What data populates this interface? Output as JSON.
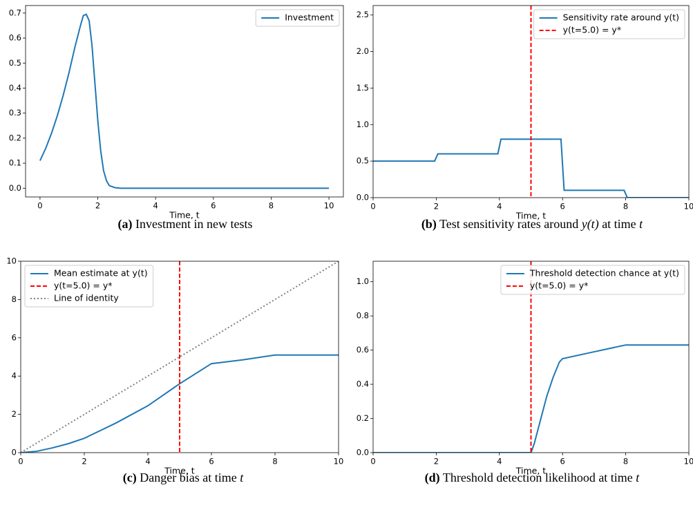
{
  "chart_data": [
    {
      "type": "line",
      "caption_label": "(a)",
      "caption": [
        "Investment in new tests"
      ],
      "xlabel": "Time, t",
      "xlim": [
        -0.5,
        10.5
      ],
      "ylim": [
        -0.035,
        0.73
      ],
      "xticks": [
        0,
        2,
        4,
        6,
        8,
        10
      ],
      "yticks": [
        {
          "value": 0,
          "label": "0.0"
        },
        0.1,
        0.2,
        0.3,
        0.4,
        0.5,
        0.6,
        0.7
      ],
      "legend": "upper right",
      "series": [
        {
          "name": "Investment",
          "color": "#1f77b4",
          "style": "solid",
          "x": [
            0,
            0.2,
            0.4,
            0.6,
            0.8,
            1.0,
            1.2,
            1.4,
            1.5,
            1.6,
            1.7,
            1.8,
            1.9,
            2.0,
            2.1,
            2.2,
            2.3,
            2.4,
            2.6,
            2.8,
            10
          ],
          "values": [
            0.11,
            0.16,
            0.22,
            0.29,
            0.37,
            0.46,
            0.56,
            0.65,
            0.69,
            0.695,
            0.67,
            0.57,
            0.42,
            0.27,
            0.15,
            0.07,
            0.03,
            0.01,
            0.002,
            0,
            0
          ]
        }
      ]
    },
    {
      "type": "line",
      "caption_label": "(b)",
      "caption": [
        "Test sensitivity rates around ",
        "y(t)",
        " at time ",
        "t"
      ],
      "xlabel": "Time, t",
      "xlim": [
        0,
        10
      ],
      "ylim": [
        0,
        2.63
      ],
      "xticks": [
        0,
        2,
        4,
        6,
        8,
        10
      ],
      "yticks": [
        {
          "value": 0,
          "label": "0.0"
        },
        0.5,
        {
          "value": 1,
          "label": "1.0"
        },
        1.5,
        {
          "value": 2,
          "label": "2.0"
        },
        2.5
      ],
      "legend": "upper right",
      "series": [
        {
          "name": "Sensitivity rate around y(t)",
          "color": "#1f77b4",
          "style": "solid",
          "x": [
            0,
            1.95,
            2.05,
            3.95,
            4.05,
            5.95,
            6.05,
            7.95,
            8.05,
            10
          ],
          "values": [
            0.5,
            0.5,
            0.6,
            0.6,
            0.8,
            0.8,
            0.1,
            0.1,
            0,
            0
          ]
        },
        {
          "name": "y(t=5.0) = y*",
          "color": "red",
          "style": "dashed",
          "vertical_at": 5
        }
      ]
    },
    {
      "type": "line",
      "caption_label": "(c)",
      "caption": [
        "Danger bias at time ",
        "t"
      ],
      "xlabel": "Time, t",
      "xlim": [
        0,
        10
      ],
      "ylim": [
        0,
        10
      ],
      "xticks": [
        0,
        2,
        4,
        6,
        8,
        10
      ],
      "yticks": [
        0,
        2,
        4,
        6,
        8,
        10
      ],
      "legend": "upper left",
      "series": [
        {
          "name": "Mean estimate at y(t)",
          "color": "#1f77b4",
          "style": "solid",
          "x": [
            0,
            0.5,
            1,
            1.5,
            2,
            3,
            4,
            5,
            6,
            7,
            8,
            10
          ],
          "values": [
            0,
            0.07,
            0.25,
            0.47,
            0.75,
            1.55,
            2.45,
            3.6,
            4.65,
            4.85,
            5.1,
            5.1
          ]
        },
        {
          "name": "y(t=5.0) = y*",
          "color": "red",
          "style": "dashed",
          "vertical_at": 5
        },
        {
          "name": "Line of identity",
          "color": "gray",
          "style": "dotted",
          "x": [
            0,
            10
          ],
          "values": [
            0,
            10
          ]
        }
      ]
    },
    {
      "type": "line",
      "caption_label": "(d)",
      "caption": [
        "Threshold detection likelihood at time ",
        "t"
      ],
      "xlabel": "Time, t",
      "xlim": [
        0,
        10
      ],
      "ylim": [
        0,
        1.12
      ],
      "xticks": [
        0,
        2,
        4,
        6,
        8,
        10
      ],
      "yticks": [
        {
          "value": 0,
          "label": "0.0"
        },
        0.2,
        0.4,
        0.6,
        0.8,
        {
          "value": 1,
          "label": "1.0"
        }
      ],
      "legend": "upper right",
      "series": [
        {
          "name": "Threshold detection chance at y(t)",
          "color": "#1f77b4",
          "style": "solid",
          "x": [
            0,
            5.0,
            5.1,
            5.3,
            5.5,
            5.7,
            5.9,
            6.0,
            7,
            8,
            10
          ],
          "values": [
            0,
            0,
            0.05,
            0.19,
            0.33,
            0.44,
            0.53,
            0.55,
            0.59,
            0.63,
            0.63
          ]
        },
        {
          "name": "y(t=5.0) = y*",
          "color": "red",
          "style": "dashed",
          "vertical_at": 5
        }
      ]
    }
  ]
}
